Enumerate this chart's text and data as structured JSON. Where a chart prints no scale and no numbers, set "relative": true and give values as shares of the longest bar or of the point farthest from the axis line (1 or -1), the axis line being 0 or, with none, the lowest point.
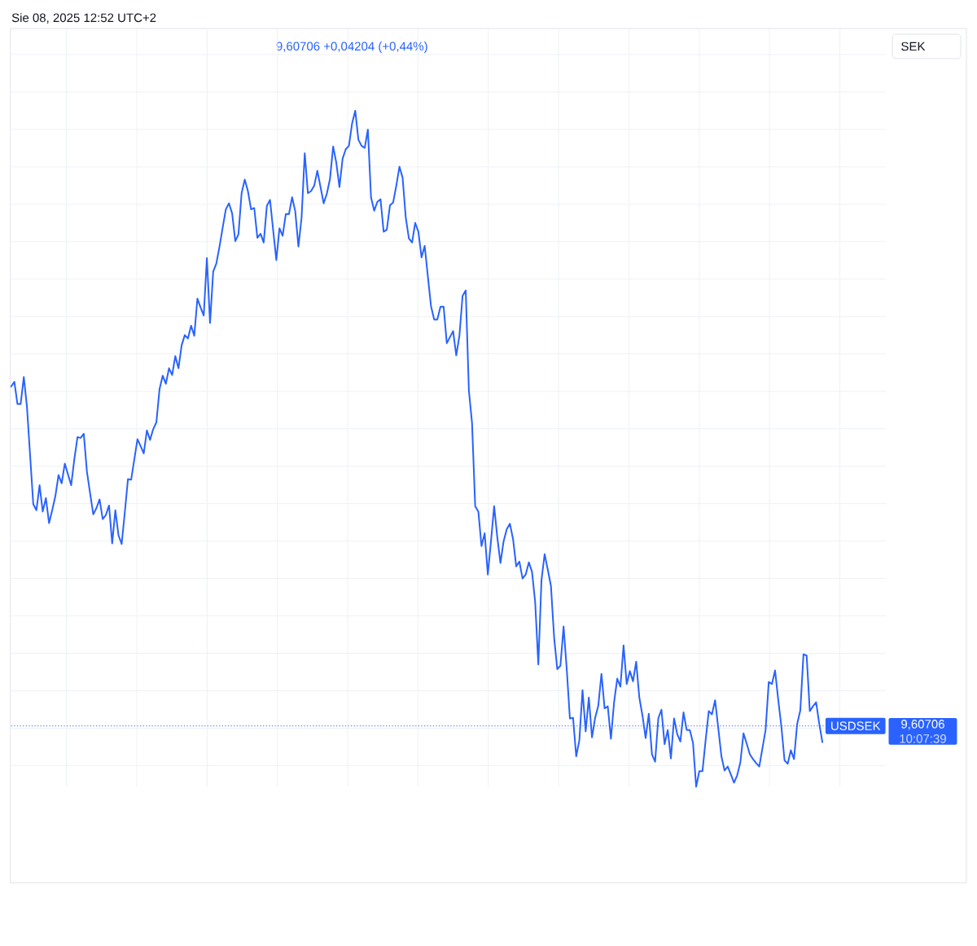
{
  "chart_data": {
    "type": "line",
    "title": "Sie 08, 2025 12:52 UTC+2",
    "subtitle": "9,60706 +0,04204 (+0,44%)",
    "relative": true,
    "grid": true,
    "categories": [
      null,
      null,
      null,
      null,
      null,
      null,
      null,
      null,
      null,
      null,
      null,
      null,
      null,
      null,
      null,
      null,
      null,
      null,
      null,
      null,
      null,
      null,
      null,
      null,
      null,
      null,
      null,
      null,
      null,
      null,
      null,
      null,
      null,
      null,
      null,
      null,
      null,
      null,
      null,
      null,
      null,
      null,
      null,
      null,
      null,
      null,
      null,
      null,
      null,
      null,
      null,
      null,
      null,
      null,
      null,
      null,
      null,
      null,
      null,
      null,
      null,
      null,
      null,
      null,
      null,
      null,
      null,
      null,
      null,
      null,
      null,
      null,
      null,
      null,
      null,
      null,
      null,
      null,
      null,
      null,
      null,
      null,
      null,
      null,
      null,
      null,
      null,
      null,
      null,
      null,
      null,
      null,
      null,
      null,
      null,
      null,
      null,
      null,
      null,
      null,
      null,
      null,
      null,
      null,
      null,
      null,
      null,
      null,
      null,
      null,
      null,
      null,
      null,
      null,
      null,
      null,
      null,
      null,
      null,
      null,
      null,
      null,
      null,
      null,
      null,
      null,
      null,
      null,
      null,
      null,
      null,
      null,
      null,
      null,
      null,
      null,
      null,
      null,
      null,
      null,
      null,
      null,
      null,
      null,
      null,
      null,
      null,
      null,
      null,
      null,
      null,
      null,
      null,
      null,
      null,
      null,
      null,
      null,
      null,
      null,
      null,
      null,
      null,
      null,
      null,
      null,
      null,
      null,
      null,
      null,
      null,
      null,
      null,
      null,
      null,
      null,
      null,
      null,
      null,
      null,
      null,
      null,
      null,
      null,
      null,
      null,
      null,
      null,
      null,
      null,
      null,
      null,
      null,
      null,
      null,
      null,
      null,
      null,
      null,
      null,
      null,
      null,
      null,
      null,
      null,
      null,
      null,
      null,
      null,
      null,
      null,
      null,
      null,
      null,
      null,
      null,
      null,
      null,
      null,
      null,
      null,
      null,
      null,
      null,
      null,
      null,
      null,
      null,
      null,
      null,
      null,
      null,
      null,
      null,
      null,
      null,
      null,
      null,
      null,
      null,
      null,
      null,
      null,
      null,
      null,
      null,
      null,
      null,
      null,
      null,
      null,
      null,
      null,
      null,
      null,
      null,
      null,
      null
    ],
    "series": [
      {
        "color": "#2962ff",
        "values": [
          0.592,
          0.599,
          0.566,
          0.566,
          0.606,
          0.562,
          0.49,
          0.418,
          0.409,
          0.446,
          0.407,
          0.427,
          0.39,
          0.409,
          0.43,
          0.461,
          0.449,
          0.478,
          0.462,
          0.446,
          0.484,
          0.517,
          0.516,
          0.522,
          0.466,
          0.434,
          0.403,
          0.412,
          0.425,
          0.396,
          0.402,
          0.416,
          0.36,
          0.409,
          0.372,
          0.359,
          0.406,
          0.455,
          0.454,
          0.484,
          0.514,
          0.504,
          0.493,
          0.527,
          0.513,
          0.529,
          0.539,
          0.588,
          0.608,
          0.596,
          0.619,
          0.609,
          0.637,
          0.619,
          0.653,
          0.668,
          0.663,
          0.682,
          0.667,
          0.722,
          0.709,
          0.697,
          0.782,
          0.686,
          0.762,
          0.774,
          0.799,
          0.827,
          0.854,
          0.863,
          0.848,
          0.807,
          0.817,
          0.878,
          0.898,
          0.881,
          0.854,
          0.856,
          0.812,
          0.818,
          0.805,
          0.859,
          0.868,
          0.823,
          0.779,
          0.826,
          0.815,
          0.847,
          0.847,
          0.872,
          0.851,
          0.799,
          0.842,
          0.937,
          0.878,
          0.881,
          0.889,
          0.911,
          0.887,
          0.863,
          0.877,
          0.899,
          0.947,
          0.923,
          0.887,
          0.929,
          0.943,
          0.948,
          0.981,
          1.0,
          0.957,
          0.948,
          0.945,
          0.972,
          0.872,
          0.852,
          0.865,
          0.869,
          0.821,
          0.824,
          0.86,
          0.864,
          0.889,
          0.917,
          0.901,
          0.842,
          0.811,
          0.805,
          0.834,
          0.821,
          0.783,
          0.8,
          0.755,
          0.711,
          0.691,
          0.691,
          0.71,
          0.71,
          0.656,
          0.665,
          0.674,
          0.638,
          0.667,
          0.726,
          0.734,
          0.586,
          0.538,
          0.415,
          0.407,
          0.356,
          0.375,
          0.314,
          0.363,
          0.415,
          0.369,
          0.331,
          0.363,
          0.381,
          0.389,
          0.366,
          0.326,
          0.333,
          0.308,
          0.314,
          0.332,
          0.318,
          0.273,
          0.181,
          0.306,
          0.344,
          0.321,
          0.297,
          0.221,
          0.174,
          0.179,
          0.237,
          0.174,
          0.101,
          0.102,
          0.045,
          0.069,
          0.143,
          0.082,
          0.132,
          0.073,
          0.102,
          0.12,
          0.167,
          0.116,
          0.119,
          0.071,
          0.125,
          0.16,
          0.148,
          0.209,
          0.152,
          0.171,
          0.156,
          0.185,
          0.132,
          0.105,
          0.072,
          0.108,
          0.048,
          0.037,
          0.101,
          0.114,
          0.063,
          0.084,
          0.042,
          0.101,
          0.078,
          0.067,
          0.11,
          0.084,
          0.084,
          0.065,
          0.0,
          0.023,
          0.023,
          0.069,
          0.112,
          0.107,
          0.128,
          0.087,
          0.045,
          0.024,
          0.03,
          0.018,
          0.006,
          0.017,
          0.036,
          0.079,
          0.064,
          0.048,
          0.041,
          0.035,
          0.03,
          0.057,
          0.084,
          0.155,
          0.152,
          0.172,
          0.129,
          0.089,
          0.039,
          0.034,
          0.054,
          0.041,
          0.093,
          0.113,
          0.196,
          0.194,
          0.112,
          0.119,
          0.125,
          0.093,
          0.066
        ]
      }
    ],
    "ref_lines": [
      {
        "axis": "y",
        "value": 0.09,
        "label": "USDSEK",
        "color": "#2962ff",
        "line_style": "dotted"
      }
    ],
    "annotations": [
      "SEK",
      "9,60706",
      "10:07:39"
    ]
  }
}
